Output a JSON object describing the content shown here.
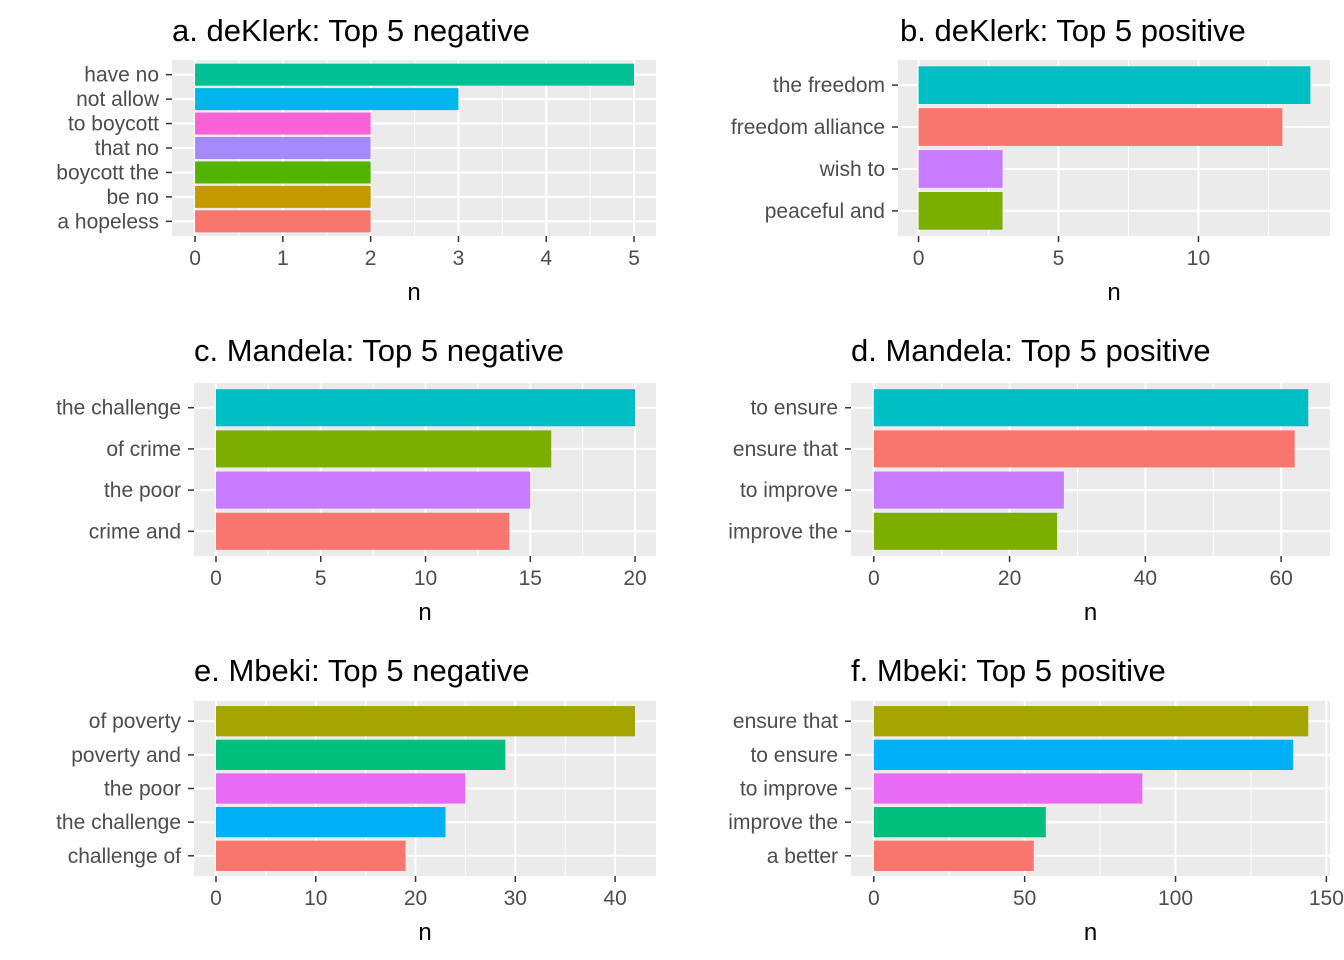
{
  "chart_data": [
    {
      "type": "bar",
      "orientation": "horizontal",
      "title": "a. deKlerk: Top 5 negative",
      "xlabel": "n",
      "categories": [
        "have no",
        "not allow",
        "to boycott",
        "that no",
        "boycott the",
        "be no",
        "a hopeless"
      ],
      "values": [
        5,
        3,
        2,
        2,
        2,
        2,
        2
      ],
      "colors": [
        "#00C094",
        "#00B6EB",
        "#FB61D7",
        "#A58AFF",
        "#53B400",
        "#C49A00",
        "#F8766D"
      ],
      "xlim": [
        0,
        5.25
      ],
      "xticks": [
        0,
        1,
        2,
        3,
        4,
        5
      ],
      "grid": true
    },
    {
      "type": "bar",
      "orientation": "horizontal",
      "title": "b. deKlerk: Top 5 positive",
      "xlabel": "n",
      "categories": [
        "the freedom",
        "freedom alliance",
        "wish to",
        "peaceful and"
      ],
      "values": [
        14,
        13,
        3,
        3
      ],
      "colors": [
        "#00BFC4",
        "#F8766D",
        "#C77CFF",
        "#7CAE00"
      ],
      "xlim": [
        0,
        14.7
      ],
      "xticks": [
        0,
        5,
        10
      ],
      "grid": true
    },
    {
      "type": "bar",
      "orientation": "horizontal",
      "title": "c. Mandela: Top 5 negative",
      "xlabel": "n",
      "categories": [
        "the challenge",
        "of crime",
        "the poor",
        "crime and"
      ],
      "values": [
        20,
        16,
        15,
        14
      ],
      "colors": [
        "#00BFC4",
        "#7CAE00",
        "#C77CFF",
        "#F8766D"
      ],
      "xlim": [
        0,
        21
      ],
      "xticks": [
        0,
        5,
        10,
        15,
        20
      ],
      "grid": true
    },
    {
      "type": "bar",
      "orientation": "horizontal",
      "title": "d. Mandela: Top 5 positive",
      "xlabel": "n",
      "categories": [
        "to ensure",
        "ensure that",
        "to improve",
        "improve the"
      ],
      "values": [
        64,
        62,
        28,
        27
      ],
      "colors": [
        "#00BFC4",
        "#F8766D",
        "#C77CFF",
        "#7CAE00"
      ],
      "xlim": [
        0,
        67.2
      ],
      "xticks": [
        0,
        20,
        40,
        60
      ],
      "grid": true
    },
    {
      "type": "bar",
      "orientation": "horizontal",
      "title": "e. Mbeki: Top 5 negative",
      "xlabel": "n",
      "categories": [
        "of poverty",
        "poverty and",
        "the poor",
        "the challenge",
        "challenge of"
      ],
      "values": [
        42,
        29,
        25,
        23,
        19
      ],
      "colors": [
        "#A3A500",
        "#00BF7D",
        "#E76BF3",
        "#00B0F6",
        "#F8766D"
      ],
      "xlim": [
        0,
        44.1
      ],
      "xticks": [
        0,
        10,
        20,
        30,
        40
      ],
      "grid": true
    },
    {
      "type": "bar",
      "orientation": "horizontal",
      "title": "f. Mbeki: Top 5 positive",
      "xlabel": "n",
      "categories": [
        "ensure that",
        "to ensure",
        "to improve",
        "improve the",
        "a better"
      ],
      "values": [
        144,
        139,
        89,
        57,
        53
      ],
      "colors": [
        "#A3A500",
        "#00B0F6",
        "#E76BF3",
        "#00BF7D",
        "#F8766D"
      ],
      "xlim": [
        0,
        151.2
      ],
      "xticks": [
        0,
        50,
        100,
        150
      ],
      "grid": true
    }
  ]
}
